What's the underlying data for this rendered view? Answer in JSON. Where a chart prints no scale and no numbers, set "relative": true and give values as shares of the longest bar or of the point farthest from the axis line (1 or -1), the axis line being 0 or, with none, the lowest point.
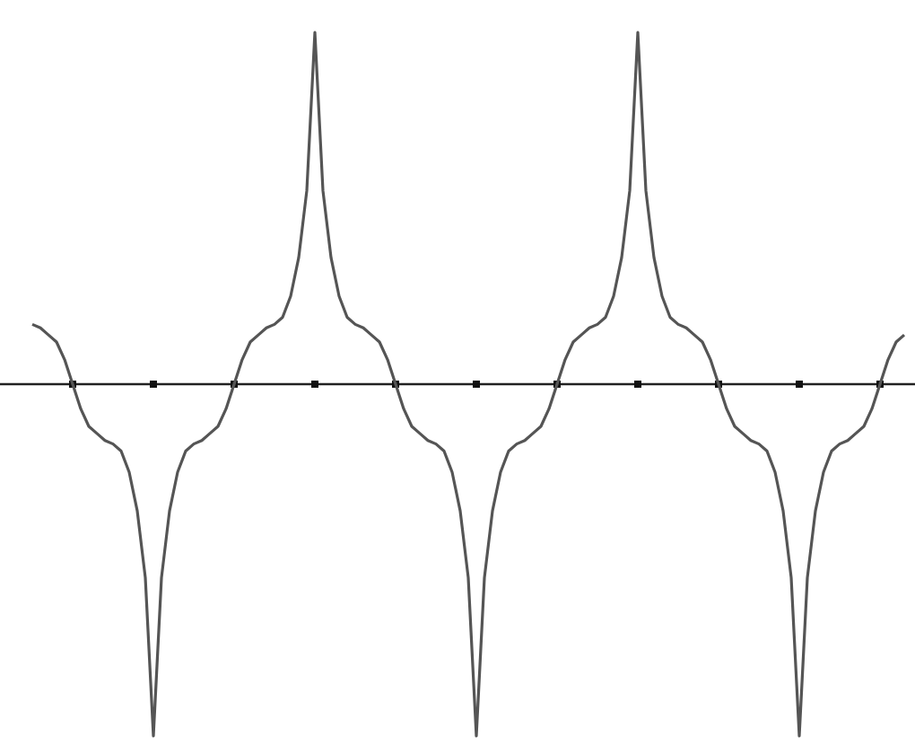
{
  "chart_data": {
    "type": "line",
    "relative": true,
    "grid": false,
    "marker": "none",
    "line_style": "solid",
    "categories": [
      null,
      null,
      null,
      null,
      null,
      null,
      null,
      null,
      null,
      null,
      null,
      null,
      null,
      null,
      null,
      null,
      null,
      null,
      null,
      null,
      null,
      null,
      null,
      null,
      null,
      null,
      null,
      null,
      null,
      null,
      null,
      null,
      null,
      null,
      null,
      null,
      null,
      null,
      null,
      null,
      null,
      null,
      null,
      null,
      null,
      null,
      null,
      null,
      null,
      null,
      null,
      null,
      null,
      null,
      null,
      null,
      null,
      null,
      null,
      null,
      null,
      null,
      null,
      null,
      null,
      null,
      null,
      null,
      null,
      null,
      null,
      null,
      null,
      null,
      null,
      null,
      null,
      null,
      null,
      null,
      null,
      null,
      null,
      null,
      null,
      null,
      null,
      null,
      null,
      null,
      null,
      null,
      null,
      null,
      null,
      null,
      null,
      null,
      null,
      null,
      null,
      null,
      null,
      null,
      null,
      null,
      null,
      null,
      null
    ],
    "series": [
      {
        "color": "#555555",
        "values": [
          0.17,
          0.16,
          0.14,
          0.12,
          0.07,
          0,
          -0.07,
          -0.12,
          -0.14,
          -0.16,
          -0.17,
          -0.19,
          -0.25,
          -0.36,
          -0.55,
          -1,
          -0.55,
          -0.36,
          -0.25,
          -0.19,
          -0.17,
          -0.16,
          -0.14,
          -0.12,
          -0.07,
          0,
          0.07,
          0.12,
          0.14,
          0.16,
          0.17,
          0.19,
          0.25,
          0.36,
          0.55,
          1,
          0.55,
          0.36,
          0.25,
          0.19,
          0.17,
          0.16,
          0.14,
          0.12,
          0.07,
          0,
          -0.07,
          -0.12,
          -0.14,
          -0.16,
          -0.17,
          -0.19,
          -0.25,
          -0.36,
          -0.55,
          -1,
          -0.55,
          -0.36,
          -0.25,
          -0.19,
          -0.17,
          -0.16,
          -0.14,
          -0.12,
          -0.07,
          0,
          0.07,
          0.12,
          0.14,
          0.16,
          0.17,
          0.19,
          0.25,
          0.36,
          0.55,
          1,
          0.55,
          0.36,
          0.25,
          0.19,
          0.17,
          0.16,
          0.14,
          0.12,
          0.07,
          0,
          -0.07,
          -0.12,
          -0.14,
          -0.16,
          -0.17,
          -0.19,
          -0.25,
          -0.36,
          -0.55,
          -1,
          -0.55,
          -0.36,
          -0.25,
          -0.19,
          -0.17,
          -0.16,
          -0.14,
          -0.12,
          -0.07,
          0,
          0.07,
          0.12,
          0.14
        ]
      }
    ]
  }
}
